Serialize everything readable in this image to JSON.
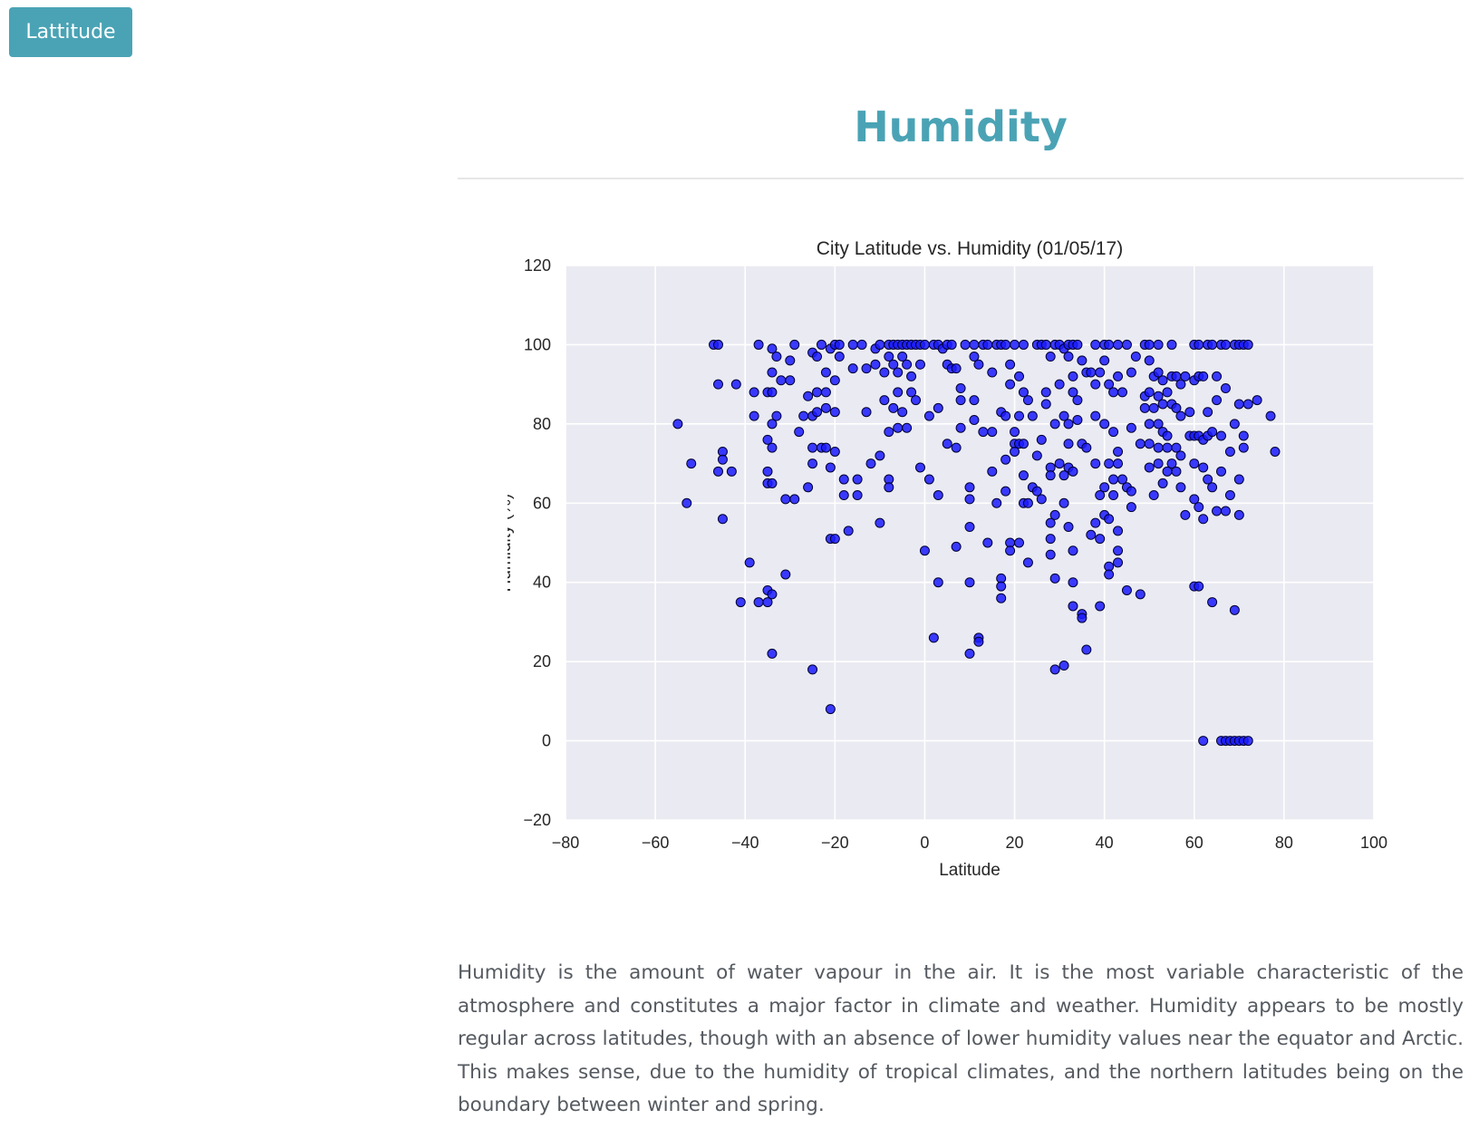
{
  "nav": {
    "button_label": "Lattitude"
  },
  "section": {
    "title": "Humidity",
    "description": "Humidity is the amount of water vapour in the air. It is the most variable characteristic of the atmosphere and constitutes a major factor in climate and weather. Humidity appears to be mostly regular across latitudes, though with an absence of lower humidity values near the equator and Arctic. This makes sense, due to the humidity of tropical climates, and the northern latitudes being on the boundary between winter and spring."
  },
  "colors": {
    "accent": "#4aa3b5",
    "plot_background": "#eaeaf2",
    "marker_fill": "#1a1aff",
    "marker_edge": "#000033"
  },
  "chart_data": {
    "type": "scatter",
    "title": "City Latitude vs. Humidity (01/05/17)",
    "xlabel": "Latitude",
    "ylabel": "Humidity (%)",
    "xlim": [
      -80,
      100
    ],
    "ylim": [
      -20,
      120
    ],
    "xticks": [
      -80,
      -60,
      -40,
      -20,
      0,
      20,
      40,
      60,
      80,
      100
    ],
    "xtick_labels": [
      "−80",
      "−60",
      "−40",
      "−20",
      "0",
      "20",
      "40",
      "60",
      "80",
      "100"
    ],
    "yticks": [
      -20,
      0,
      20,
      40,
      60,
      80,
      100,
      120
    ],
    "ytick_labels": [
      "−20",
      "0",
      "20",
      "40",
      "60",
      "80",
      "100",
      "120"
    ],
    "grid": true,
    "legend": "none",
    "points": [
      [
        -55,
        80
      ],
      [
        -53,
        60
      ],
      [
        -52,
        70
      ],
      [
        -47,
        100
      ],
      [
        -46,
        100
      ],
      [
        -46,
        90
      ],
      [
        -46,
        68
      ],
      [
        -45,
        73
      ],
      [
        -45,
        71
      ],
      [
        -45,
        56
      ],
      [
        -43,
        68
      ],
      [
        -42,
        90
      ],
      [
        -41,
        35
      ],
      [
        -39,
        45
      ],
      [
        -38,
        88
      ],
      [
        -38,
        82
      ],
      [
        -37,
        100
      ],
      [
        -37,
        35
      ],
      [
        -35,
        88
      ],
      [
        -35,
        76
      ],
      [
        -35,
        68
      ],
      [
        -35,
        65
      ],
      [
        -35,
        35
      ],
      [
        -35,
        38
      ],
      [
        -34,
        99
      ],
      [
        -34,
        93
      ],
      [
        -34,
        88
      ],
      [
        -34,
        80
      ],
      [
        -34,
        74
      ],
      [
        -34,
        65
      ],
      [
        -34,
        37
      ],
      [
        -34,
        22
      ],
      [
        -33,
        97
      ],
      [
        -33,
        82
      ],
      [
        -32,
        91
      ],
      [
        -31,
        61
      ],
      [
        -31,
        42
      ],
      [
        -30,
        96
      ],
      [
        -30,
        91
      ],
      [
        -29,
        100
      ],
      [
        -29,
        61
      ],
      [
        -28,
        78
      ],
      [
        -27,
        82
      ],
      [
        -26,
        87
      ],
      [
        -26,
        64
      ],
      [
        -25,
        98
      ],
      [
        -25,
        82
      ],
      [
        -25,
        74
      ],
      [
        -25,
        70
      ],
      [
        -25,
        18
      ],
      [
        -24,
        97
      ],
      [
        -24,
        83
      ],
      [
        -24,
        88
      ],
      [
        -23,
        100
      ],
      [
        -23,
        74
      ],
      [
        -22,
        93
      ],
      [
        -22,
        84
      ],
      [
        -22,
        74
      ],
      [
        -22,
        88
      ],
      [
        -21,
        99
      ],
      [
        -21,
        69
      ],
      [
        -21,
        51
      ],
      [
        -21,
        8
      ],
      [
        -20,
        100
      ],
      [
        -20,
        83
      ],
      [
        -20,
        91
      ],
      [
        -20,
        73
      ],
      [
        -20,
        51
      ],
      [
        -19,
        100
      ],
      [
        -19,
        97
      ],
      [
        -18,
        66
      ],
      [
        -18,
        62
      ],
      [
        -17,
        53
      ],
      [
        -16,
        100
      ],
      [
        -16,
        94
      ],
      [
        -15,
        66
      ],
      [
        -15,
        62
      ],
      [
        -14,
        100
      ],
      [
        -13,
        94
      ],
      [
        -13,
        83
      ],
      [
        -12,
        70
      ],
      [
        -11,
        99
      ],
      [
        -11,
        95
      ],
      [
        -10,
        100
      ],
      [
        -10,
        72
      ],
      [
        -10,
        55
      ],
      [
        -9,
        93
      ],
      [
        -9,
        86
      ],
      [
        -8,
        100
      ],
      [
        -8,
        97
      ],
      [
        -8,
        78
      ],
      [
        -8,
        66
      ],
      [
        -8,
        64
      ],
      [
        -7,
        100
      ],
      [
        -7,
        95
      ],
      [
        -7,
        84
      ],
      [
        -6,
        100
      ],
      [
        -6,
        93
      ],
      [
        -6,
        88
      ],
      [
        -6,
        79
      ],
      [
        -5,
        100
      ],
      [
        -5,
        97
      ],
      [
        -5,
        83
      ],
      [
        -4,
        100
      ],
      [
        -4,
        95
      ],
      [
        -4,
        79
      ],
      [
        -3,
        100
      ],
      [
        -3,
        92
      ],
      [
        -3,
        88
      ],
      [
        -2,
        100
      ],
      [
        -2,
        86
      ],
      [
        -1,
        100
      ],
      [
        -1,
        95
      ],
      [
        -1,
        69
      ],
      [
        0,
        100
      ],
      [
        0,
        48
      ],
      [
        1,
        82
      ],
      [
        1,
        66
      ],
      [
        2,
        100
      ],
      [
        2,
        26
      ],
      [
        3,
        100
      ],
      [
        3,
        84
      ],
      [
        3,
        62
      ],
      [
        3,
        40
      ],
      [
        4,
        99
      ],
      [
        5,
        100
      ],
      [
        5,
        95
      ],
      [
        5,
        75
      ],
      [
        6,
        100
      ],
      [
        6,
        94
      ],
      [
        7,
        94
      ],
      [
        7,
        74
      ],
      [
        7,
        49
      ],
      [
        8,
        89
      ],
      [
        8,
        86
      ],
      [
        8,
        79
      ],
      [
        9,
        100
      ],
      [
        10,
        64
      ],
      [
        10,
        61
      ],
      [
        10,
        54
      ],
      [
        10,
        40
      ],
      [
        10,
        22
      ],
      [
        11,
        100
      ],
      [
        11,
        97
      ],
      [
        11,
        86
      ],
      [
        11,
        81
      ],
      [
        12,
        95
      ],
      [
        12,
        26
      ],
      [
        12,
        25
      ],
      [
        13,
        100
      ],
      [
        13,
        78
      ],
      [
        14,
        100
      ],
      [
        14,
        50
      ],
      [
        15,
        93
      ],
      [
        15,
        78
      ],
      [
        15,
        68
      ],
      [
        16,
        100
      ],
      [
        16,
        60
      ],
      [
        17,
        100
      ],
      [
        17,
        83
      ],
      [
        17,
        41
      ],
      [
        17,
        39
      ],
      [
        17,
        36
      ],
      [
        18,
        100
      ],
      [
        18,
        82
      ],
      [
        18,
        71
      ],
      [
        18,
        63
      ],
      [
        19,
        95
      ],
      [
        19,
        90
      ],
      [
        19,
        50
      ],
      [
        19,
        48
      ],
      [
        20,
        100
      ],
      [
        20,
        78
      ],
      [
        20,
        75
      ],
      [
        20,
        73
      ],
      [
        21,
        92
      ],
      [
        21,
        82
      ],
      [
        21,
        75
      ],
      [
        21,
        50
      ],
      [
        22,
        100
      ],
      [
        22,
        88
      ],
      [
        22,
        75
      ],
      [
        22,
        67
      ],
      [
        22,
        60
      ],
      [
        23,
        86
      ],
      [
        23,
        60
      ],
      [
        23,
        45
      ],
      [
        24,
        82
      ],
      [
        24,
        64
      ],
      [
        25,
        100
      ],
      [
        25,
        72
      ],
      [
        25,
        63
      ],
      [
        26,
        100
      ],
      [
        26,
        76
      ],
      [
        26,
        61
      ],
      [
        27,
        100
      ],
      [
        27,
        88
      ],
      [
        27,
        85
      ],
      [
        28,
        97
      ],
      [
        28,
        69
      ],
      [
        28,
        67
      ],
      [
        28,
        55
      ],
      [
        28,
        51
      ],
      [
        28,
        47
      ],
      [
        29,
        100
      ],
      [
        29,
        80
      ],
      [
        29,
        57
      ],
      [
        29,
        41
      ],
      [
        29,
        18
      ],
      [
        30,
        100
      ],
      [
        30,
        90
      ],
      [
        30,
        70
      ],
      [
        31,
        99
      ],
      [
        31,
        82
      ],
      [
        31,
        67
      ],
      [
        31,
        60
      ],
      [
        31,
        19
      ],
      [
        32,
        100
      ],
      [
        32,
        97
      ],
      [
        32,
        80
      ],
      [
        32,
        75
      ],
      [
        32,
        69
      ],
      [
        32,
        54
      ],
      [
        33,
        100
      ],
      [
        33,
        92
      ],
      [
        33,
        88
      ],
      [
        33,
        68
      ],
      [
        33,
        48
      ],
      [
        33,
        40
      ],
      [
        33,
        34
      ],
      [
        34,
        100
      ],
      [
        34,
        86
      ],
      [
        34,
        81
      ],
      [
        35,
        96
      ],
      [
        35,
        75
      ],
      [
        35,
        32
      ],
      [
        35,
        31
      ],
      [
        36,
        93
      ],
      [
        36,
        74
      ],
      [
        36,
        23
      ],
      [
        37,
        93
      ],
      [
        37,
        52
      ],
      [
        38,
        100
      ],
      [
        38,
        90
      ],
      [
        38,
        82
      ],
      [
        38,
        70
      ],
      [
        38,
        55
      ],
      [
        39,
        93
      ],
      [
        39,
        62
      ],
      [
        39,
        51
      ],
      [
        39,
        34
      ],
      [
        40,
        100
      ],
      [
        40,
        96
      ],
      [
        40,
        80
      ],
      [
        40,
        64
      ],
      [
        40,
        57
      ],
      [
        41,
        100
      ],
      [
        41,
        90
      ],
      [
        41,
        70
      ],
      [
        41,
        56
      ],
      [
        41,
        44
      ],
      [
        41,
        42
      ],
      [
        42,
        88
      ],
      [
        42,
        78
      ],
      [
        42,
        66
      ],
      [
        42,
        62
      ],
      [
        43,
        100
      ],
      [
        43,
        92
      ],
      [
        43,
        73
      ],
      [
        43,
        70
      ],
      [
        43,
        53
      ],
      [
        43,
        48
      ],
      [
        43,
        45
      ],
      [
        44,
        88
      ],
      [
        44,
        66
      ],
      [
        45,
        100
      ],
      [
        45,
        64
      ],
      [
        45,
        38
      ],
      [
        46,
        93
      ],
      [
        46,
        79
      ],
      [
        46,
        63
      ],
      [
        46,
        59
      ],
      [
        47,
        97
      ],
      [
        48,
        75
      ],
      [
        48,
        37
      ],
      [
        49,
        100
      ],
      [
        49,
        87
      ],
      [
        49,
        84
      ],
      [
        50,
        100
      ],
      [
        50,
        96
      ],
      [
        50,
        88
      ],
      [
        50,
        80
      ],
      [
        50,
        75
      ],
      [
        50,
        69
      ],
      [
        51,
        92
      ],
      [
        51,
        84
      ],
      [
        51,
        62
      ],
      [
        52,
        100
      ],
      [
        52,
        93
      ],
      [
        52,
        87
      ],
      [
        52,
        80
      ],
      [
        52,
        74
      ],
      [
        52,
        70
      ],
      [
        53,
        91
      ],
      [
        53,
        85
      ],
      [
        53,
        78
      ],
      [
        53,
        65
      ],
      [
        54,
        88
      ],
      [
        54,
        77
      ],
      [
        54,
        74
      ],
      [
        54,
        68
      ],
      [
        55,
        100
      ],
      [
        55,
        92
      ],
      [
        55,
        85
      ],
      [
        55,
        70
      ],
      [
        56,
        92
      ],
      [
        56,
        84
      ],
      [
        56,
        74
      ],
      [
        56,
        68
      ],
      [
        57,
        90
      ],
      [
        57,
        82
      ],
      [
        57,
        72
      ],
      [
        57,
        64
      ],
      [
        58,
        92
      ],
      [
        58,
        57
      ],
      [
        59,
        83
      ],
      [
        59,
        77
      ],
      [
        60,
        100
      ],
      [
        60,
        91
      ],
      [
        60,
        77
      ],
      [
        60,
        70
      ],
      [
        60,
        61
      ],
      [
        60,
        39
      ],
      [
        61,
        100
      ],
      [
        61,
        92
      ],
      [
        61,
        77
      ],
      [
        61,
        59
      ],
      [
        61,
        39
      ],
      [
        62,
        92
      ],
      [
        62,
        76
      ],
      [
        62,
        69
      ],
      [
        62,
        56
      ],
      [
        62,
        0
      ],
      [
        63,
        100
      ],
      [
        63,
        83
      ],
      [
        63,
        77
      ],
      [
        63,
        66
      ],
      [
        64,
        100
      ],
      [
        64,
        78
      ],
      [
        64,
        64
      ],
      [
        64,
        35
      ],
      [
        65,
        92
      ],
      [
        65,
        86
      ],
      [
        65,
        58
      ],
      [
        66,
        100
      ],
      [
        66,
        77
      ],
      [
        66,
        68
      ],
      [
        66,
        0
      ],
      [
        67,
        100
      ],
      [
        67,
        89
      ],
      [
        67,
        58
      ],
      [
        67,
        0
      ],
      [
        68,
        73
      ],
      [
        68,
        62
      ],
      [
        68,
        0
      ],
      [
        69,
        100
      ],
      [
        69,
        80
      ],
      [
        69,
        33
      ],
      [
        69,
        0
      ],
      [
        70,
        100
      ],
      [
        70,
        85
      ],
      [
        70,
        66
      ],
      [
        70,
        57
      ],
      [
        70,
        0
      ],
      [
        71,
        100
      ],
      [
        71,
        77
      ],
      [
        71,
        74
      ],
      [
        71,
        0
      ],
      [
        72,
        100
      ],
      [
        72,
        85
      ],
      [
        72,
        0
      ],
      [
        74,
        86
      ],
      [
        77,
        82
      ],
      [
        78,
        73
      ]
    ]
  }
}
